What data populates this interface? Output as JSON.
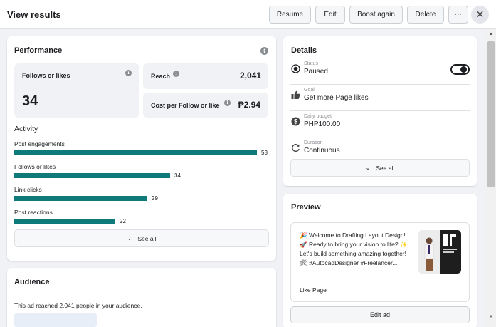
{
  "header": {
    "title": "View results",
    "buttons": {
      "resume": "Resume",
      "edit": "Edit",
      "boost_again": "Boost again",
      "delete": "Delete",
      "more": "···"
    },
    "close": "✕"
  },
  "performance": {
    "title": "Performance",
    "follows_label": "Follows or likes",
    "follows_value": "34",
    "reach_label": "Reach",
    "reach_value": "2,041",
    "cost_label": "Cost per Follow or like",
    "cost_value": "₱2.94",
    "activity_title": "Activity",
    "activity": [
      {
        "label": "Post engagements",
        "value": "53",
        "fraction": 1.0
      },
      {
        "label": "Follows or likes",
        "value": "34",
        "fraction": 0.6415
      },
      {
        "label": "Link clicks",
        "value": "29",
        "fraction": 0.5472
      },
      {
        "label": "Post reactions",
        "value": "22",
        "fraction": 0.4151
      }
    ],
    "see_all": "See all"
  },
  "audience": {
    "title": "Audience",
    "text": "This ad reached 2,041 people in your audience."
  },
  "details": {
    "title": "Details",
    "status_label": "Status",
    "status_value": "Paused",
    "goal_label": "Goal",
    "goal_value": "Get more Page likes",
    "budget_label": "Daily budget",
    "budget_value": "PHP100.00",
    "duration_label": "Duration",
    "duration_value": "Continuous",
    "see_all": "See all"
  },
  "preview": {
    "title": "Preview",
    "text": "🎉 Welcome to Drafting Layout Design! 🚀 Ready to bring your vision to life? ✨ Let's build something amazing together! 🛠 #AutocadDesigner #Freelancer...",
    "like_page": "Like Page",
    "edit_ad": "Edit ad"
  },
  "colors": {
    "bar": "#0f7a7a",
    "card": "#ffffff",
    "background": "#f0f2f5"
  },
  "icons": {
    "status": "radio-icon",
    "goal": "thumbs-up-icon",
    "budget": "dollar-icon",
    "duration": "refresh-icon"
  }
}
